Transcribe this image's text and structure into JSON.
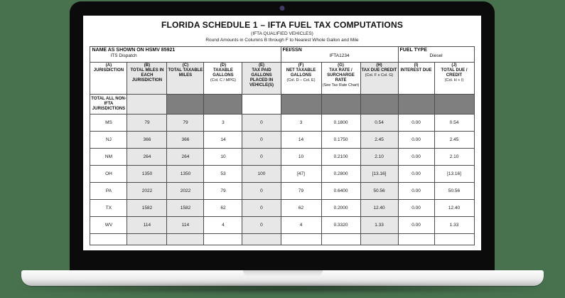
{
  "colors": {
    "page_background": "#48714e",
    "bezel": "#0b0b0b",
    "shaded_column": "#e7e7e7",
    "blocked_cell": "#7f7f7f"
  },
  "form": {
    "title": "FLORIDA SCHEDULE 1 – IFTA FUEL TAX COMPUTATIONS",
    "subtitle1": "(IFTA QUALIFIED VEHICLES)",
    "subtitle2": "Round Amounts in Columns B through F to Nearest Whole Gallon and Mile",
    "info": {
      "name_label": "NAME AS SHOWN ON HSMV 85921",
      "name_value": "ITS Dispatch",
      "fei_label": "FEI/SSN",
      "fei_value": "IFTA1234",
      "fuel_label": "FUEL TYPE",
      "fuel_value": "Diesel"
    },
    "columns": [
      {
        "code": "(A)",
        "title": "JURISDICTION",
        "note": ""
      },
      {
        "code": "(B)",
        "title": "TOTAL MILES IN EACH JURISDICTION",
        "note": ""
      },
      {
        "code": "(C)",
        "title": "TOTAL TAXABLE MILES",
        "note": ""
      },
      {
        "code": "(D)",
        "title": "TAXABLE GALLONS",
        "note": "(Col. C / MPG)"
      },
      {
        "code": "(E)",
        "title": "TAX PAID GALLONS PLACED IN VEHICLE(S)",
        "note": ""
      },
      {
        "code": "(F)",
        "title": "NET TAXABLE GALLONS",
        "note": "(Col. D – Col. E)"
      },
      {
        "code": "(G)",
        "title": "TAX RATE / SURCHARGE RATE",
        "note": "(See Tax Rate Chart)"
      },
      {
        "code": "(H)",
        "title": "TAX DUE CREDIT",
        "note": "(Col. F x Col. G)"
      },
      {
        "code": "(I)",
        "title": "INTEREST DUE",
        "note": ""
      },
      {
        "code": "(J)",
        "title": "TOTAL DUE / CREDIT",
        "note": "(Col. H + I)"
      }
    ],
    "non_ifta_label": "TOTAL ALL NON-IFTA JURISDICTIONS",
    "rows": [
      {
        "cells": [
          "MS",
          "79",
          "79",
          "3",
          "0",
          "3",
          "0.1800",
          "0.54",
          "0.00",
          "0.54"
        ]
      },
      {
        "cells": [
          "NJ",
          "366",
          "366",
          "14",
          "0",
          "14",
          "0.1750",
          "2.45",
          "0.00",
          "2.45"
        ]
      },
      {
        "cells": [
          "NM",
          "264",
          "264",
          "10",
          "0",
          "10",
          "0.2100",
          "2.10",
          "0.00",
          "2.10"
        ]
      },
      {
        "cells": [
          "OH",
          "1350",
          "1350",
          "53",
          "100",
          "[47]",
          "0.2800",
          "[13.16]",
          "0.00",
          "[13.16]"
        ]
      },
      {
        "cells": [
          "PA",
          "2022",
          "2022",
          "79",
          "0",
          "79",
          "0.6400",
          "50.56",
          "0.00",
          "50.56"
        ]
      },
      {
        "cells": [
          "TX",
          "1582",
          "1582",
          "62",
          "0",
          "62",
          "0.2000",
          "12.40",
          "0.00",
          "12.40"
        ]
      },
      {
        "cells": [
          "WV",
          "114",
          "114",
          "4",
          "0",
          "4",
          "0.3320",
          "1.33",
          "0.00",
          "1.33"
        ]
      }
    ]
  }
}
